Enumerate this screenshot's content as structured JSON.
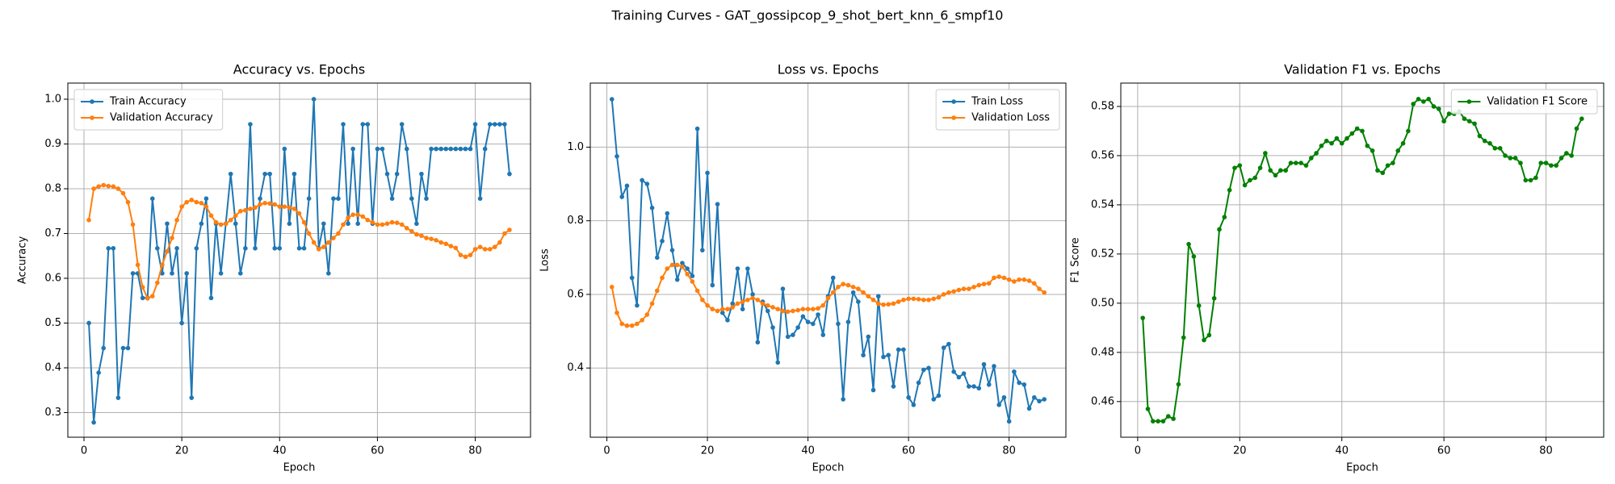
{
  "title": "Training Curves - GAT_gossipcop_9_shot_bert_knn_6_smpf10",
  "chart_data": [
    {
      "type": "line",
      "title": "Accuracy vs. Epochs",
      "xlabel": "Epoch",
      "ylabel": "Accuracy",
      "x": [
        1,
        2,
        3,
        4,
        5,
        6,
        7,
        8,
        9,
        10,
        11,
        12,
        13,
        14,
        15,
        16,
        17,
        18,
        19,
        20,
        21,
        22,
        23,
        24,
        25,
        26,
        27,
        28,
        29,
        30,
        31,
        32,
        33,
        34,
        35,
        36,
        37,
        38,
        39,
        40,
        41,
        42,
        43,
        44,
        45,
        46,
        47,
        48,
        49,
        50,
        51,
        52,
        53,
        54,
        55,
        56,
        57,
        58,
        59,
        60,
        61,
        62,
        63,
        64,
        65,
        66,
        67,
        68,
        69,
        70,
        71,
        72,
        73,
        74,
        75,
        76,
        77,
        78,
        79,
        80,
        81,
        82,
        83,
        84,
        85,
        86,
        87
      ],
      "xlim": [
        -3.3,
        91.3
      ],
      "xticks": [
        0,
        20,
        40,
        60,
        80
      ],
      "ylim": [
        0.245,
        1.036
      ],
      "yticks": [
        0.3,
        0.4,
        0.5,
        0.6,
        0.7,
        0.8,
        0.9,
        {
          "value": 1,
          "label": "1.0"
        }
      ],
      "grid": true,
      "legend": "upper left",
      "series": [
        {
          "name": "Train Accuracy",
          "color": "#1f77b4",
          "values": [
            0.5,
            0.278,
            0.389,
            0.444,
            0.667,
            0.667,
            0.333,
            0.444,
            0.444,
            0.611,
            0.611,
            0.556,
            0.556,
            0.778,
            0.667,
            0.611,
            0.722,
            0.611,
            0.667,
            0.5,
            0.611,
            0.333,
            0.667,
            0.722,
            0.778,
            0.556,
            0.722,
            0.611,
            0.722,
            0.833,
            0.722,
            0.611,
            0.667,
            0.944,
            0.667,
            0.778,
            0.833,
            0.833,
            0.667,
            0.667,
            0.889,
            0.722,
            0.833,
            0.667,
            0.667,
            0.778,
            1.0,
            0.667,
            0.722,
            0.611,
            0.778,
            0.778,
            0.944,
            0.722,
            0.889,
            0.722,
            0.944,
            0.944,
            0.722,
            0.889,
            0.889,
            0.833,
            0.778,
            0.833,
            0.944,
            0.889,
            0.778,
            0.722,
            0.833,
            0.778,
            0.889,
            0.889,
            0.889,
            0.889,
            0.889,
            0.889,
            0.889,
            0.889,
            0.889,
            0.944,
            0.778,
            0.889,
            0.944,
            0.944,
            0.944,
            0.944,
            0.833
          ]
        },
        {
          "name": "Validation Accuracy",
          "color": "#ff7f0e",
          "values": [
            0.73,
            0.8,
            0.805,
            0.808,
            0.806,
            0.805,
            0.8,
            0.79,
            0.77,
            0.72,
            0.63,
            0.58,
            0.555,
            0.56,
            0.59,
            0.63,
            0.66,
            0.69,
            0.73,
            0.76,
            0.77,
            0.775,
            0.77,
            0.768,
            0.76,
            0.74,
            0.725,
            0.72,
            0.722,
            0.73,
            0.74,
            0.75,
            0.752,
            0.755,
            0.758,
            0.765,
            0.768,
            0.767,
            0.765,
            0.76,
            0.76,
            0.758,
            0.755,
            0.745,
            0.725,
            0.7,
            0.68,
            0.665,
            0.67,
            0.68,
            0.69,
            0.7,
            0.72,
            0.735,
            0.742,
            0.742,
            0.738,
            0.73,
            0.725,
            0.72,
            0.72,
            0.722,
            0.725,
            0.724,
            0.72,
            0.712,
            0.705,
            0.698,
            0.695,
            0.69,
            0.688,
            0.685,
            0.68,
            0.677,
            0.672,
            0.668,
            0.652,
            0.648,
            0.652,
            0.665,
            0.67,
            0.665,
            0.665,
            0.67,
            0.68,
            0.7,
            0.708
          ]
        }
      ]
    },
    {
      "type": "line",
      "title": "Loss vs. Epochs",
      "xlabel": "Epoch",
      "ylabel": "Loss",
      "x": [
        1,
        2,
        3,
        4,
        5,
        6,
        7,
        8,
        9,
        10,
        11,
        12,
        13,
        14,
        15,
        16,
        17,
        18,
        19,
        20,
        21,
        22,
        23,
        24,
        25,
        26,
        27,
        28,
        29,
        30,
        31,
        32,
        33,
        34,
        35,
        36,
        37,
        38,
        39,
        40,
        41,
        42,
        43,
        44,
        45,
        46,
        47,
        48,
        49,
        50,
        51,
        52,
        53,
        54,
        55,
        56,
        57,
        58,
        59,
        60,
        61,
        62,
        63,
        64,
        65,
        66,
        67,
        68,
        69,
        70,
        71,
        72,
        73,
        74,
        75,
        76,
        77,
        78,
        79,
        80,
        81,
        82,
        83,
        84,
        85,
        86,
        87
      ],
      "xlim": [
        -3.3,
        91.3
      ],
      "xticks": [
        0,
        20,
        40,
        60,
        80
      ],
      "ylim": [
        0.212,
        1.174
      ],
      "yticks": [
        0.4,
        0.6,
        0.8,
        {
          "value": 1,
          "label": "1.0"
        }
      ],
      "grid": true,
      "legend": "upper right",
      "series": [
        {
          "name": "Train Loss",
          "color": "#1f77b4",
          "values": [
            1.13,
            0.975,
            0.865,
            0.895,
            0.645,
            0.57,
            0.91,
            0.9,
            0.835,
            0.7,
            0.745,
            0.82,
            0.72,
            0.64,
            0.685,
            0.67,
            0.65,
            1.05,
            0.72,
            0.93,
            0.625,
            0.845,
            0.55,
            0.53,
            0.575,
            0.67,
            0.56,
            0.67,
            0.6,
            0.47,
            0.58,
            0.555,
            0.51,
            0.415,
            0.615,
            0.485,
            0.49,
            0.51,
            0.54,
            0.525,
            0.52,
            0.545,
            0.49,
            0.595,
            0.645,
            0.52,
            0.315,
            0.525,
            0.605,
            0.58,
            0.435,
            0.485,
            0.34,
            0.595,
            0.43,
            0.435,
            0.35,
            0.45,
            0.45,
            0.32,
            0.3,
            0.36,
            0.395,
            0.4,
            0.315,
            0.325,
            0.455,
            0.465,
            0.39,
            0.375,
            0.385,
            0.35,
            0.35,
            0.345,
            0.41,
            0.355,
            0.405,
            0.3,
            0.32,
            0.255,
            0.39,
            0.36,
            0.355,
            0.29,
            0.32,
            0.31,
            0.315
          ]
        },
        {
          "name": "Validation Loss",
          "color": "#ff7f0e",
          "values": [
            0.62,
            0.55,
            0.52,
            0.515,
            0.515,
            0.52,
            0.53,
            0.545,
            0.575,
            0.61,
            0.645,
            0.67,
            0.68,
            0.68,
            0.675,
            0.655,
            0.635,
            0.61,
            0.585,
            0.57,
            0.56,
            0.555,
            0.56,
            0.56,
            0.565,
            0.575,
            0.58,
            0.585,
            0.59,
            0.585,
            0.575,
            0.57,
            0.565,
            0.56,
            0.555,
            0.553,
            0.555,
            0.557,
            0.56,
            0.56,
            0.56,
            0.562,
            0.57,
            0.59,
            0.605,
            0.62,
            0.628,
            0.625,
            0.62,
            0.615,
            0.605,
            0.595,
            0.585,
            0.575,
            0.572,
            0.573,
            0.575,
            0.58,
            0.585,
            0.588,
            0.588,
            0.587,
            0.585,
            0.585,
            0.588,
            0.592,
            0.6,
            0.605,
            0.608,
            0.612,
            0.615,
            0.615,
            0.62,
            0.625,
            0.628,
            0.63,
            0.645,
            0.648,
            0.645,
            0.64,
            0.635,
            0.64,
            0.64,
            0.637,
            0.63,
            0.615,
            0.605
          ]
        }
      ]
    },
    {
      "type": "line",
      "title": "Validation F1 vs. Epochs",
      "xlabel": "Epoch",
      "ylabel": "F1 Score",
      "x": [
        1,
        2,
        3,
        4,
        5,
        6,
        7,
        8,
        9,
        10,
        11,
        12,
        13,
        14,
        15,
        16,
        17,
        18,
        19,
        20,
        21,
        22,
        23,
        24,
        25,
        26,
        27,
        28,
        29,
        30,
        31,
        32,
        33,
        34,
        35,
        36,
        37,
        38,
        39,
        40,
        41,
        42,
        43,
        44,
        45,
        46,
        47,
        48,
        49,
        50,
        51,
        52,
        53,
        54,
        55,
        56,
        57,
        58,
        59,
        60,
        61,
        62,
        63,
        64,
        65,
        66,
        67,
        68,
        69,
        70,
        71,
        72,
        73,
        74,
        75,
        76,
        77,
        78,
        79,
        80,
        81,
        82,
        83,
        84,
        85,
        86,
        87
      ],
      "xlim": [
        -3.3,
        91.3
      ],
      "xticks": [
        0,
        20,
        40,
        60,
        80
      ],
      "ylim": [
        0.4455,
        0.5895
      ],
      "yticks": [
        0.46,
        0.48,
        {
          "value": 0.5,
          "label": "0.50"
        },
        0.52,
        0.54,
        0.56,
        0.58
      ],
      "grid": true,
      "legend": "upper right",
      "series": [
        {
          "name": "Validation F1 Score",
          "color": "#008000",
          "values": [
            0.494,
            0.457,
            0.452,
            0.452,
            0.452,
            0.454,
            0.453,
            0.467,
            0.486,
            0.524,
            0.519,
            0.499,
            0.485,
            0.487,
            0.502,
            0.53,
            0.535,
            0.546,
            0.555,
            0.556,
            0.548,
            0.55,
            0.551,
            0.555,
            0.561,
            0.554,
            0.552,
            0.554,
            0.554,
            0.557,
            0.557,
            0.557,
            0.556,
            0.559,
            0.561,
            0.564,
            0.566,
            0.565,
            0.567,
            0.565,
            0.567,
            0.569,
            0.571,
            0.57,
            0.564,
            0.562,
            0.554,
            0.553,
            0.556,
            0.557,
            0.562,
            0.565,
            0.57,
            0.581,
            0.583,
            0.582,
            0.583,
            0.58,
            0.579,
            0.574,
            0.577,
            0.577,
            0.578,
            0.575,
            0.574,
            0.573,
            0.568,
            0.566,
            0.565,
            0.563,
            0.563,
            0.56,
            0.559,
            0.559,
            0.557,
            0.55,
            0.55,
            0.551,
            0.557,
            0.557,
            0.556,
            0.556,
            0.559,
            0.561,
            0.56,
            0.571,
            0.575
          ]
        }
      ]
    }
  ]
}
